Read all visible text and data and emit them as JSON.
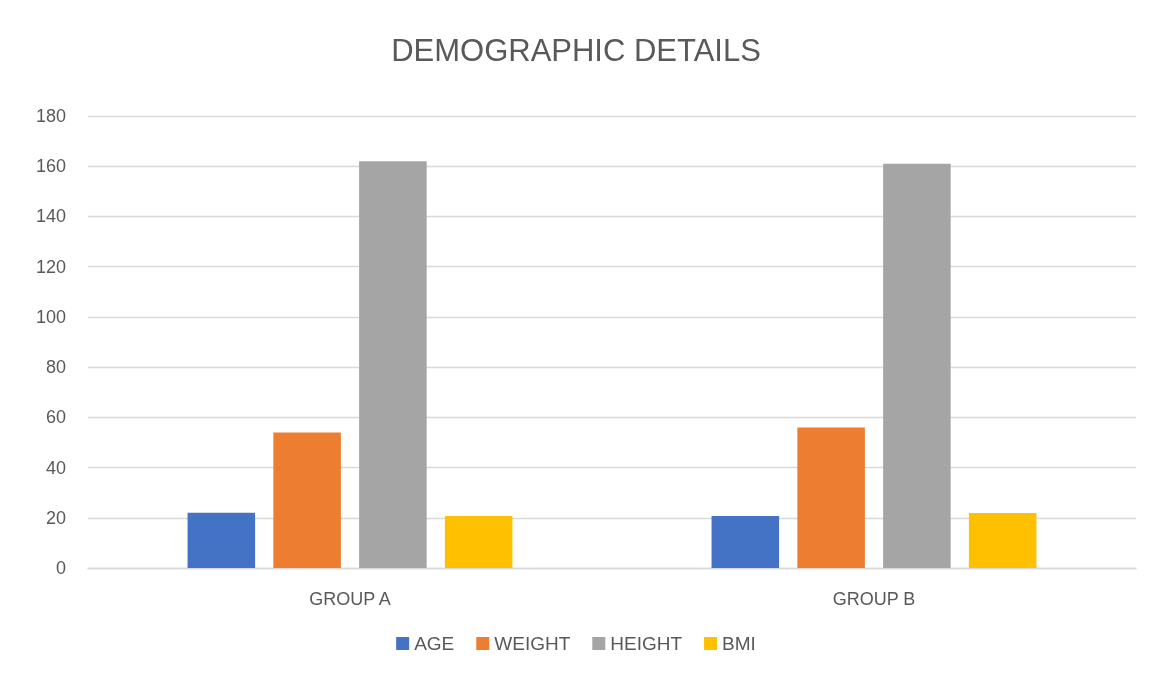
{
  "chart_data": {
    "type": "bar",
    "title": "DEMOGRAPHIC DETAILS",
    "categories": [
      "GROUP A",
      "GROUP B"
    ],
    "series": [
      {
        "name": "AGE",
        "color": "#4472c4",
        "values": [
          22,
          20.7
        ]
      },
      {
        "name": "WEIGHT",
        "color": "#ed7d31",
        "values": [
          54,
          56
        ]
      },
      {
        "name": "HEIGHT",
        "color": "#a5a5a5",
        "values": [
          162,
          161
        ]
      },
      {
        "name": "BMI",
        "color": "#ffc000",
        "values": [
          20.7,
          21.9
        ]
      }
    ],
    "ylim": [
      0,
      180
    ],
    "yticks": [
      0,
      20,
      40,
      60,
      80,
      100,
      120,
      140,
      160,
      180
    ],
    "grid": "y",
    "legend": "bottom"
  }
}
